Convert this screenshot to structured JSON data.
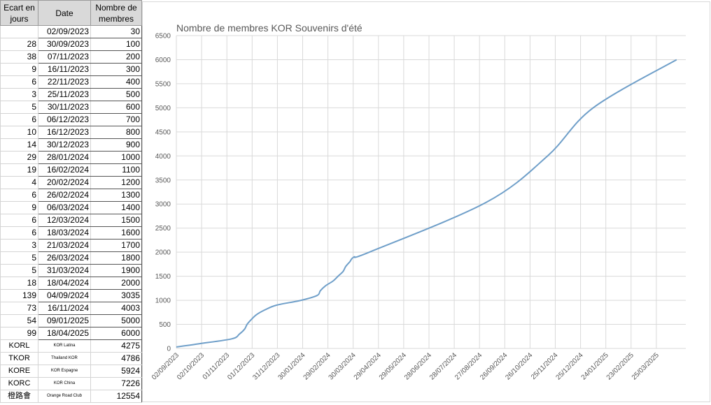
{
  "sheet": {
    "headers": [
      "Ecart en jours",
      "Date",
      "Nombre de membres"
    ],
    "rows": [
      {
        "gap": "",
        "date": "02/09/2023",
        "members": "30"
      },
      {
        "gap": "28",
        "date": "30/09/2023",
        "members": "100"
      },
      {
        "gap": "38",
        "date": "07/11/2023",
        "members": "200"
      },
      {
        "gap": "9",
        "date": "16/11/2023",
        "members": "300"
      },
      {
        "gap": "6",
        "date": "22/11/2023",
        "members": "400"
      },
      {
        "gap": "3",
        "date": "25/11/2023",
        "members": "500"
      },
      {
        "gap": "5",
        "date": "30/11/2023",
        "members": "600"
      },
      {
        "gap": "6",
        "date": "06/12/2023",
        "members": "700"
      },
      {
        "gap": "10",
        "date": "16/12/2023",
        "members": "800"
      },
      {
        "gap": "14",
        "date": "30/12/2023",
        "members": "900"
      },
      {
        "gap": "29",
        "date": "28/01/2024",
        "members": "1000"
      },
      {
        "gap": "19",
        "date": "16/02/2024",
        "members": "1100"
      },
      {
        "gap": "4",
        "date": "20/02/2024",
        "members": "1200"
      },
      {
        "gap": "6",
        "date": "26/02/2024",
        "members": "1300"
      },
      {
        "gap": "9",
        "date": "06/03/2024",
        "members": "1400"
      },
      {
        "gap": "6",
        "date": "12/03/2024",
        "members": "1500"
      },
      {
        "gap": "6",
        "date": "18/03/2024",
        "members": "1600"
      },
      {
        "gap": "3",
        "date": "21/03/2024",
        "members": "1700"
      },
      {
        "gap": "5",
        "date": "26/03/2024",
        "members": "1800"
      },
      {
        "gap": "5",
        "date": "31/03/2024",
        "members": "1900"
      },
      {
        "gap": "18",
        "date": "18/04/2024",
        "members": "2000"
      },
      {
        "gap": "139",
        "date": "04/09/2024",
        "members": "3035"
      },
      {
        "gap": "73",
        "date": "16/11/2024",
        "members": "4003"
      },
      {
        "gap": "54",
        "date": "09/01/2025",
        "members": "5000"
      },
      {
        "gap": "99",
        "date": "18/04/2025",
        "members": "6000"
      }
    ],
    "other_groups": [
      {
        "code": "KORL",
        "name": "KOR Latina",
        "members": "4275"
      },
      {
        "code": "TKOR",
        "name": "Thailand KOR",
        "members": "4786"
      },
      {
        "code": "KORE",
        "name": "KOR Espagne",
        "members": "5924"
      },
      {
        "code": "KORC",
        "name": "KOR China",
        "members": "7226"
      },
      {
        "code": "橙路會",
        "name": "Orange Road Club",
        "members": "12554"
      }
    ]
  },
  "chart_data": {
    "type": "line",
    "title": "Nombre de membres KOR Souvenirs d'été",
    "x": [
      "2023-09-02",
      "2023-09-30",
      "2023-11-07",
      "2023-11-16",
      "2023-11-22",
      "2023-11-25",
      "2023-11-30",
      "2023-12-06",
      "2023-12-16",
      "2023-12-30",
      "2024-01-28",
      "2024-02-16",
      "2024-02-20",
      "2024-02-26",
      "2024-03-06",
      "2024-03-12",
      "2024-03-18",
      "2024-03-21",
      "2024-03-26",
      "2024-03-31",
      "2024-04-18",
      "2024-09-04",
      "2024-11-16",
      "2025-01-09",
      "2025-04-18"
    ],
    "values": [
      30,
      100,
      200,
      300,
      400,
      500,
      600,
      700,
      800,
      900,
      1000,
      1100,
      1200,
      1300,
      1400,
      1500,
      1600,
      1700,
      1800,
      1900,
      2000,
      3035,
      4003,
      5000,
      6000
    ],
    "ylim": [
      0,
      6500
    ],
    "yticks": [
      0,
      500,
      1000,
      1500,
      2000,
      2500,
      3000,
      3500,
      4000,
      4500,
      5000,
      5500,
      6000,
      6500
    ],
    "xlim": [
      "2023-09-02",
      "2025-04-29"
    ],
    "xticks": [
      "02/09/2023",
      "02/10/2023",
      "01/11/2023",
      "01/12/2023",
      "31/12/2023",
      "30/01/2024",
      "29/02/2024",
      "30/03/2024",
      "29/04/2024",
      "29/05/2024",
      "28/06/2024",
      "28/07/2024",
      "27/08/2024",
      "26/09/2024",
      "26/10/2024",
      "25/11/2024",
      "25/12/2024",
      "24/01/2025",
      "23/02/2025",
      "25/03/2025"
    ],
    "grid": true,
    "line_color": "#6f9fc9"
  }
}
